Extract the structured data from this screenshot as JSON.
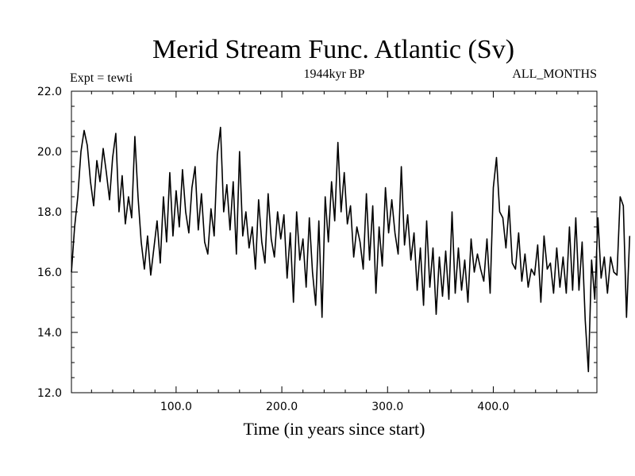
{
  "chart_data": {
    "type": "line",
    "title": "Merid Stream Func. Atlantic (Sv)",
    "left_label": "Expt = tewti",
    "center_label": "1944kyr BP",
    "right_label": "ALL_MONTHS",
    "xlabel": "Time (in years since start)",
    "ylabel": "",
    "xlim": [
      1,
      498
    ],
    "ylim": [
      12.0,
      22.0
    ],
    "x_ticks": [
      100,
      200,
      300,
      400
    ],
    "x_tick_labels": [
      "100.0",
      "200.0",
      "300.0",
      "400.0"
    ],
    "y_ticks": [
      12,
      14,
      16,
      18,
      20,
      22
    ],
    "y_tick_labels": [
      "12.0",
      "14.0",
      "16.0",
      "18.0",
      "20.0",
      "22.0"
    ],
    "series": [
      {
        "name": "Merid Stream Func. Atlantic",
        "x_start": 1,
        "x_step": 3,
        "values": [
          16.0,
          17.5,
          18.5,
          20.0,
          20.7,
          20.2,
          19.0,
          18.2,
          19.7,
          19.0,
          20.1,
          19.3,
          18.4,
          19.8,
          20.6,
          18.0,
          19.2,
          17.6,
          18.5,
          17.8,
          20.5,
          18.5,
          17.0,
          16.1,
          17.2,
          15.9,
          16.8,
          17.7,
          16.3,
          18.5,
          17.0,
          19.3,
          17.2,
          18.7,
          17.5,
          19.4,
          18.0,
          17.3,
          18.8,
          19.5,
          17.4,
          18.6,
          17.0,
          16.6,
          18.1,
          17.2,
          19.9,
          20.8,
          18.0,
          18.9,
          17.4,
          19.0,
          16.6,
          20.0,
          17.2,
          18.0,
          16.8,
          17.5,
          16.1,
          18.4,
          17.0,
          16.3,
          18.6,
          17.1,
          16.5,
          18.0,
          17.1,
          17.9,
          15.8,
          17.3,
          15.0,
          18.0,
          16.4,
          17.1,
          15.5,
          17.8,
          16.0,
          14.9,
          17.7,
          14.5,
          18.5,
          17.0,
          19.0,
          17.7,
          20.3,
          18.0,
          19.3,
          17.6,
          18.2,
          16.5,
          17.5,
          17.0,
          16.1,
          18.6,
          16.4,
          18.2,
          15.3,
          17.5,
          16.2,
          18.8,
          17.3,
          18.4,
          17.3,
          16.6,
          19.5,
          16.9,
          17.9,
          16.4,
          17.3,
          15.4,
          16.8,
          14.9,
          17.7,
          15.5,
          16.8,
          14.6,
          16.5,
          15.2,
          16.7,
          15.1,
          18.0,
          15.3,
          16.8,
          15.4,
          16.4,
          15.0,
          17.1,
          16.0,
          16.6,
          16.1,
          15.7,
          17.1,
          15.3,
          18.8,
          19.8,
          18.0,
          17.8,
          16.8,
          18.2,
          16.3,
          16.1,
          17.3,
          15.7,
          16.6,
          15.5,
          16.1,
          15.9,
          16.9,
          15.0,
          17.2,
          16.1,
          16.3,
          15.3,
          16.8,
          15.5,
          16.5,
          15.3,
          17.5,
          15.4,
          17.8,
          15.4,
          17.0,
          14.4,
          12.7,
          16.4,
          15.1,
          17.8,
          15.8,
          16.5,
          15.3,
          16.5,
          16.0,
          15.9,
          18.5,
          18.2,
          14.5,
          17.2
        ]
      }
    ]
  }
}
